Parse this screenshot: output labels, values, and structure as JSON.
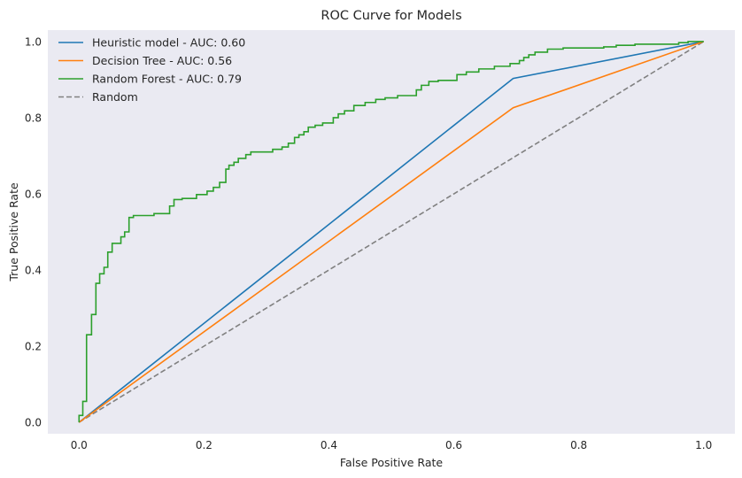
{
  "chart_data": {
    "type": "line",
    "title": "ROC Curve for Models",
    "xlabel": "False Positive Rate",
    "ylabel": "True Positive Rate",
    "xlim": [
      -0.05,
      1.05
    ],
    "ylim": [
      -0.03,
      1.03
    ],
    "xticks": [
      0.0,
      0.2,
      0.4,
      0.6,
      0.8,
      1.0
    ],
    "yticks": [
      0.0,
      0.2,
      0.4,
      0.6,
      0.8,
      1.0
    ],
    "xtick_labels": [
      "0.0",
      "0.2",
      "0.4",
      "0.6",
      "0.8",
      "1.0"
    ],
    "ytick_labels": [
      "0.0",
      "0.2",
      "0.4",
      "0.6",
      "0.8",
      "1.0"
    ],
    "grid": false,
    "background": "#eaeaf2",
    "legend_position": "top-left",
    "series": [
      {
        "name": "Heuristic model - AUC: 0.60",
        "color": "#1f77b4",
        "style": "solid",
        "step": false,
        "points": [
          [
            0.0,
            0.0
          ],
          [
            0.695,
            0.903
          ],
          [
            1.0,
            1.0
          ]
        ]
      },
      {
        "name": "Decision Tree - AUC: 0.56",
        "color": "#ff7f0e",
        "style": "solid",
        "step": false,
        "points": [
          [
            0.0,
            0.0
          ],
          [
            0.695,
            0.826
          ],
          [
            1.0,
            1.0
          ]
        ]
      },
      {
        "name": "Random Forest - AUC: 0.79",
        "color": "#2ca02c",
        "style": "solid",
        "step": true,
        "points": [
          [
            0.0,
            0.0
          ],
          [
            0.0,
            0.018
          ],
          [
            0.006,
            0.018
          ],
          [
            0.006,
            0.055
          ],
          [
            0.012,
            0.055
          ],
          [
            0.012,
            0.23
          ],
          [
            0.02,
            0.23
          ],
          [
            0.02,
            0.283
          ],
          [
            0.027,
            0.283
          ],
          [
            0.027,
            0.365
          ],
          [
            0.033,
            0.365
          ],
          [
            0.033,
            0.39
          ],
          [
            0.04,
            0.39
          ],
          [
            0.04,
            0.407
          ],
          [
            0.046,
            0.407
          ],
          [
            0.046,
            0.447
          ],
          [
            0.053,
            0.447
          ],
          [
            0.053,
            0.47
          ],
          [
            0.067,
            0.47
          ],
          [
            0.067,
            0.487
          ],
          [
            0.073,
            0.487
          ],
          [
            0.073,
            0.5
          ],
          [
            0.08,
            0.5
          ],
          [
            0.08,
            0.538
          ],
          [
            0.087,
            0.538
          ],
          [
            0.087,
            0.543
          ],
          [
            0.12,
            0.543
          ],
          [
            0.12,
            0.548
          ],
          [
            0.145,
            0.548
          ],
          [
            0.145,
            0.568
          ],
          [
            0.152,
            0.568
          ],
          [
            0.152,
            0.585
          ],
          [
            0.165,
            0.585
          ],
          [
            0.165,
            0.588
          ],
          [
            0.188,
            0.588
          ],
          [
            0.188,
            0.598
          ],
          [
            0.205,
            0.598
          ],
          [
            0.205,
            0.607
          ],
          [
            0.215,
            0.607
          ],
          [
            0.215,
            0.617
          ],
          [
            0.225,
            0.617
          ],
          [
            0.225,
            0.63
          ],
          [
            0.235,
            0.63
          ],
          [
            0.235,
            0.665
          ],
          [
            0.24,
            0.665
          ],
          [
            0.24,
            0.675
          ],
          [
            0.248,
            0.675
          ],
          [
            0.248,
            0.683
          ],
          [
            0.255,
            0.683
          ],
          [
            0.255,
            0.693
          ],
          [
            0.267,
            0.693
          ],
          [
            0.267,
            0.703
          ],
          [
            0.275,
            0.703
          ],
          [
            0.275,
            0.71
          ],
          [
            0.31,
            0.71
          ],
          [
            0.31,
            0.717
          ],
          [
            0.325,
            0.717
          ],
          [
            0.325,
            0.723
          ],
          [
            0.335,
            0.723
          ],
          [
            0.335,
            0.733
          ],
          [
            0.345,
            0.733
          ],
          [
            0.345,
            0.748
          ],
          [
            0.352,
            0.748
          ],
          [
            0.352,
            0.755
          ],
          [
            0.36,
            0.755
          ],
          [
            0.36,
            0.763
          ],
          [
            0.367,
            0.763
          ],
          [
            0.367,
            0.775
          ],
          [
            0.378,
            0.775
          ],
          [
            0.378,
            0.78
          ],
          [
            0.39,
            0.78
          ],
          [
            0.39,
            0.786
          ],
          [
            0.407,
            0.786
          ],
          [
            0.407,
            0.8
          ],
          [
            0.415,
            0.8
          ],
          [
            0.415,
            0.81
          ],
          [
            0.425,
            0.81
          ],
          [
            0.425,
            0.818
          ],
          [
            0.44,
            0.818
          ],
          [
            0.44,
            0.832
          ],
          [
            0.458,
            0.832
          ],
          [
            0.458,
            0.84
          ],
          [
            0.475,
            0.84
          ],
          [
            0.475,
            0.848
          ],
          [
            0.49,
            0.848
          ],
          [
            0.49,
            0.852
          ],
          [
            0.51,
            0.852
          ],
          [
            0.51,
            0.858
          ],
          [
            0.54,
            0.858
          ],
          [
            0.54,
            0.873
          ],
          [
            0.548,
            0.873
          ],
          [
            0.548,
            0.885
          ],
          [
            0.56,
            0.885
          ],
          [
            0.56,
            0.895
          ],
          [
            0.575,
            0.895
          ],
          [
            0.575,
            0.898
          ],
          [
            0.605,
            0.898
          ],
          [
            0.605,
            0.913
          ],
          [
            0.62,
            0.913
          ],
          [
            0.62,
            0.92
          ],
          [
            0.64,
            0.92
          ],
          [
            0.64,
            0.928
          ],
          [
            0.665,
            0.928
          ],
          [
            0.665,
            0.935
          ],
          [
            0.69,
            0.935
          ],
          [
            0.69,
            0.942
          ],
          [
            0.705,
            0.942
          ],
          [
            0.705,
            0.95
          ],
          [
            0.712,
            0.95
          ],
          [
            0.712,
            0.958
          ],
          [
            0.72,
            0.958
          ],
          [
            0.72,
            0.965
          ],
          [
            0.73,
            0.965
          ],
          [
            0.73,
            0.972
          ],
          [
            0.75,
            0.972
          ],
          [
            0.75,
            0.98
          ],
          [
            0.775,
            0.98
          ],
          [
            0.775,
            0.983
          ],
          [
            0.84,
            0.983
          ],
          [
            0.84,
            0.986
          ],
          [
            0.86,
            0.986
          ],
          [
            0.86,
            0.99
          ],
          [
            0.89,
            0.99
          ],
          [
            0.89,
            0.993
          ],
          [
            0.96,
            0.993
          ],
          [
            0.96,
            0.997
          ],
          [
            0.975,
            0.997
          ],
          [
            0.975,
            1.0
          ],
          [
            1.0,
            1.0
          ]
        ]
      },
      {
        "name": "Random",
        "color": "#808080",
        "style": "dashed",
        "step": false,
        "points": [
          [
            0.0,
            0.0
          ],
          [
            1.0,
            1.0
          ]
        ]
      }
    ]
  }
}
